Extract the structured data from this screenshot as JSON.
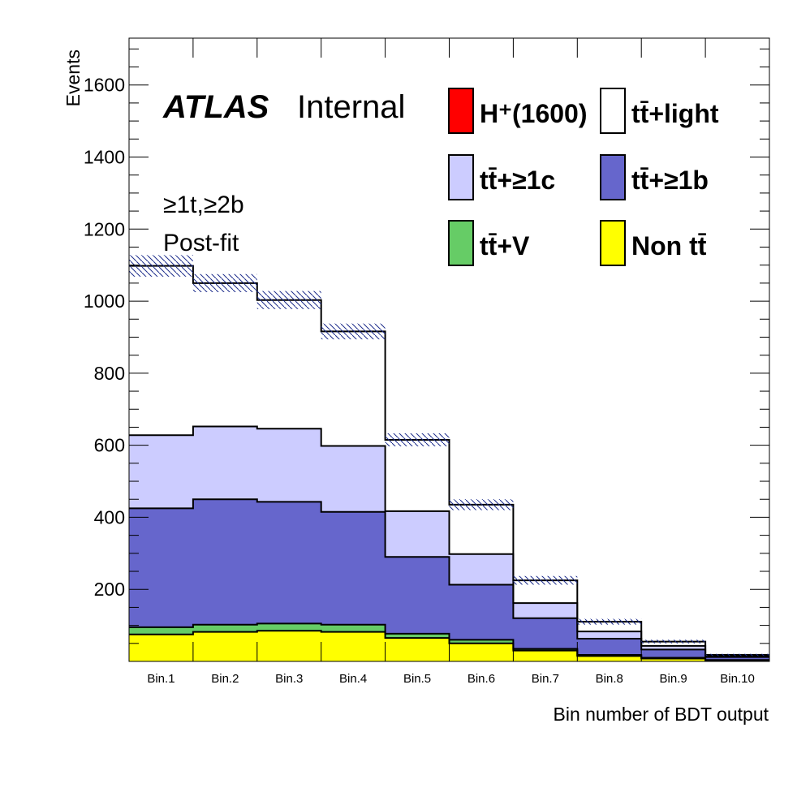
{
  "chart_data": {
    "type": "bar",
    "stacked": true,
    "histogram_style": "step",
    "categories": [
      "Bin.1",
      "Bin.2",
      "Bin.3",
      "Bin.4",
      "Bin.5",
      "Bin.6",
      "Bin.7",
      "Bin.8",
      "Bin.9",
      "Bin.10"
    ],
    "ylabel": "Events",
    "xlabel": "Bin number of BDT output",
    "ylim": [
      0,
      1730
    ],
    "yticks": [
      200,
      400,
      600,
      800,
      1000,
      1200,
      1400,
      1600
    ],
    "labels": {
      "atlas": "ATLAS",
      "atlas_suffix": "Internal",
      "region": "≥1t,≥2b",
      "fit": "Post-fit"
    },
    "legend_position": "top-right",
    "series": [
      {
        "name": "Non tt̄",
        "color": "#ffff00",
        "values": [
          75,
          82,
          85,
          82,
          65,
          50,
          30,
          15,
          8,
          3
        ]
      },
      {
        "name": "tt̄+V",
        "color": "#66cc66",
        "values": [
          20,
          20,
          20,
          20,
          12,
          10,
          5,
          3,
          2,
          1
        ]
      },
      {
        "name": "tt̄+≥1b",
        "color": "#6666cc",
        "values": [
          330,
          348,
          338,
          313,
          213,
          153,
          85,
          45,
          23,
          8
        ]
      },
      {
        "name": "tt̄+≥1c",
        "color": "#ccccff",
        "values": [
          203,
          202,
          203,
          183,
          127,
          85,
          42,
          20,
          10,
          3
        ]
      },
      {
        "name": "tt̄+light",
        "color": "#ffffff",
        "values": [
          470,
          398,
          357,
          318,
          198,
          137,
          63,
          27,
          12,
          3
        ]
      },
      {
        "name": "H⁺(1600)",
        "color": "#ff0000",
        "values": [
          0,
          0,
          0,
          0,
          0,
          0,
          0,
          0,
          0,
          0
        ]
      }
    ],
    "total_uncertainty": [
      30,
      25,
      25,
      22,
      18,
      15,
      12,
      8,
      5,
      3
    ]
  }
}
